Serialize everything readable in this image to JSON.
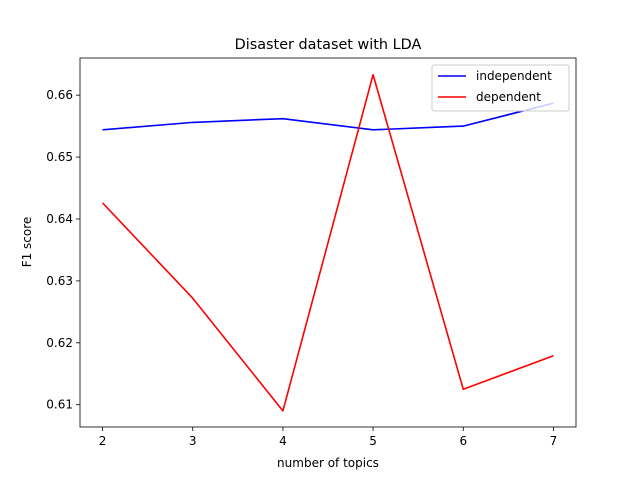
{
  "chart_data": {
    "type": "line",
    "title": "Disaster dataset with LDA",
    "xlabel": "number of topics",
    "ylabel": "F1 score",
    "x": [
      2,
      3,
      4,
      5,
      6,
      7
    ],
    "xlim": [
      1.75,
      7.25
    ],
    "ylim": [
      0.6064,
      0.666
    ],
    "xticks": [
      "2",
      "3",
      "4",
      "5",
      "6",
      "7"
    ],
    "yticks": [
      "0.61",
      "0.62",
      "0.63",
      "0.64",
      "0.65",
      "0.66"
    ],
    "grid": false,
    "legend_position": "top-right",
    "series": [
      {
        "name": "independent",
        "color": "#0000ff",
        "values": [
          0.6544,
          0.6556,
          0.6562,
          0.6544,
          0.655,
          0.6587
        ]
      },
      {
        "name": "dependent",
        "color": "#ff0000",
        "values": [
          0.6426,
          0.6272,
          0.609,
          0.6633,
          0.6125,
          0.6179
        ]
      }
    ]
  }
}
